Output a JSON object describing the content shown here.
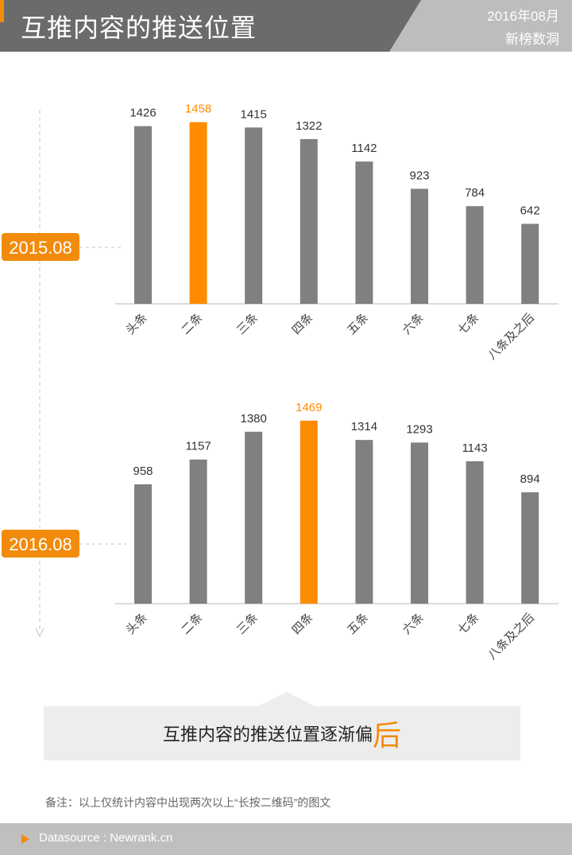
{
  "header": {
    "title": "互推内容的推送位置",
    "date": "2016年08月",
    "brand": "新榜数洞"
  },
  "colors": {
    "header_bg": "#6b6b6b",
    "accent": "#f28b0c",
    "bar": "#808080",
    "highlight": "#ff8c00"
  },
  "chart_data": [
    {
      "type": "bar",
      "period_label": "2015.08",
      "categories": [
        "头条",
        "二条",
        "三条",
        "四条",
        "五条",
        "六条",
        "七条",
        "八条及之后"
      ],
      "values": [
        1426,
        1458,
        1415,
        1322,
        1142,
        923,
        784,
        642
      ],
      "highlight_index": 1,
      "ylim": [
        0,
        1500
      ],
      "grid": false
    },
    {
      "type": "bar",
      "period_label": "2016.08",
      "categories": [
        "头条",
        "二条",
        "三条",
        "四条",
        "五条",
        "六条",
        "七条",
        "八条及之后"
      ],
      "values": [
        958,
        1157,
        1380,
        1469,
        1314,
        1293,
        1143,
        894
      ],
      "highlight_index": 3,
      "ylim": [
        0,
        1500
      ],
      "grid": false
    }
  ],
  "summary": {
    "text": "互推内容的推送位置逐渐偏",
    "emphasis": "后"
  },
  "note": "备注：以上仅统计内容中出现两次以上“长按二维码”的图文",
  "footer": {
    "source": "Datasource : Newrank.cn"
  }
}
